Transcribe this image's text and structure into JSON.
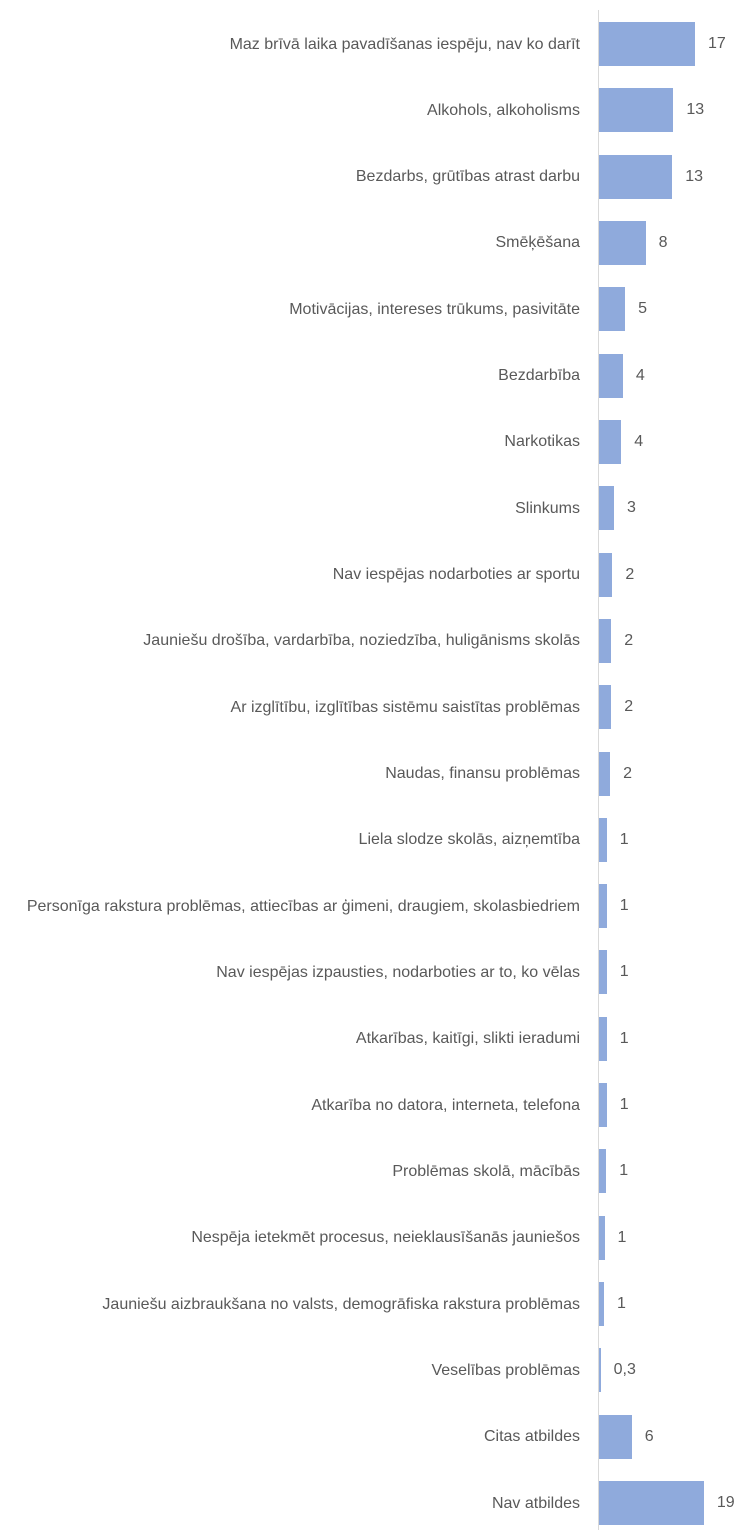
{
  "chart_data": {
    "type": "bar",
    "orientation": "horizontal",
    "color": "#8faadc",
    "categories": [
      "Maz brīvā laika pavadīšanas iespēju, nav ko darīt",
      "Alkohols, alkoholisms",
      "Bezdarbs, grūtības atrast darbu",
      "Smēķēšana",
      "Motivācijas, intereses trūkums, pasivitāte",
      "Bezdarbība",
      "Narkotikas",
      "Slinkums",
      "Nav iespējas nodarboties ar sportu",
      "Jauniešu drošība, vardarbība, noziedzība, huligānisms skolās",
      "Ar izglītību, izglītības sistēmu saistītas problēmas",
      "Naudas, finansu problēmas",
      "Liela slodze skolās, aizņemtība",
      "Personīga rakstura problēmas, attiecības ar ģimeni, draugiem, skolasbiedriem",
      "Nav iespējas izpausties, nodarboties ar to, ko vēlas",
      "Atkarības, kaitīgi, slikti ieradumi",
      "Atkarība no datora, interneta, telefona",
      "Problēmas skolā, mācībās",
      "Nespēja ietekmēt procesus, neieklausīšanās jauniešos",
      "Jauniešu aizbraukšana no valsts, demogrāfiska rakstura problēmas",
      "Veselības problēmas",
      "Citas atbildes",
      "Nav atbildes"
    ],
    "values": [
      17.3,
      13.4,
      13.2,
      8.4,
      4.7,
      4.3,
      4.0,
      2.7,
      2.4,
      2.2,
      2.2,
      2.0,
      1.4,
      1.4,
      1.4,
      1.4,
      1.4,
      1.3,
      1.0,
      0.9,
      0.3,
      5.9,
      18.9
    ],
    "value_labels": [
      "17",
      "13",
      "13",
      "8",
      "5",
      "4",
      "4",
      "3",
      "2",
      "2",
      "2",
      "2",
      "1",
      "1",
      "1",
      "1",
      "1",
      "1",
      "1",
      "1",
      "0,3",
      "6",
      "19"
    ]
  }
}
